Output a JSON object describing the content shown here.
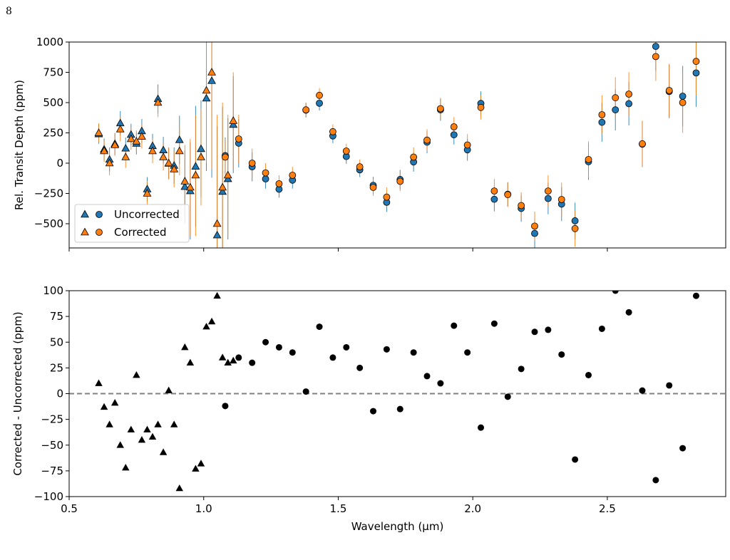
{
  "page_number": "8",
  "chart_data": [
    {
      "type": "errorbar",
      "ylabel": "Rel. Transit Depth (ppm)",
      "xlim": [
        0.5,
        2.94
      ],
      "ylim": [
        -700,
        1000
      ],
      "xticks": [
        {
          "value": 0.5,
          "label": "0.5"
        },
        {
          "value": 1.0,
          "label": "1.0"
        },
        {
          "value": 1.5,
          "label": "1.5"
        },
        {
          "value": 2.0,
          "label": "2.0"
        },
        {
          "value": 2.5,
          "label": "2.5"
        }
      ],
      "yticks": [
        {
          "value": -500,
          "label": "−500"
        },
        {
          "value": -250,
          "label": "−250"
        },
        0,
        250,
        500,
        750,
        1000
      ],
      "legend": "lower left",
      "series": [
        {
          "name": "Uncorrected",
          "color": "#1f77b4",
          "groups": [
            {
              "marker": "triangle",
              "x": [
                0.61,
                0.63,
                0.65,
                0.67,
                0.69,
                0.71,
                0.73,
                0.75,
                0.77,
                0.79,
                0.81,
                0.83,
                0.85,
                0.87,
                0.89,
                0.91,
                0.93,
                0.95,
                0.97,
                0.99,
                1.01,
                1.03,
                1.05,
                1.07,
                1.09,
                1.11
              ],
              "values": [
                240,
                113,
                30,
                159,
                330,
                122,
                235,
                162,
                265,
                -215,
                142,
                530,
                107,
                -3,
                -20,
                192,
                -195,
                -230,
                -27,
                118,
                535,
                680,
                -595,
                -235,
                -130,
                318
              ],
              "errors": [
                80,
                90,
                100,
                90,
                100,
                90,
                90,
                90,
                100,
                100,
                100,
                120,
                110,
                130,
                150,
                200,
                300,
                400,
                500,
                400,
                600,
                800,
                900,
                700,
                500,
                400
              ]
            },
            {
              "marker": "circle",
              "x": [
                1.08,
                1.13,
                1.18,
                1.23,
                1.28,
                1.33,
                1.38,
                1.43,
                1.48,
                1.53,
                1.58,
                1.63,
                1.68,
                1.73,
                1.78,
                1.83,
                1.88,
                1.93,
                1.98,
                2.03,
                2.08,
                2.13,
                2.18,
                2.23,
                2.28,
                2.33,
                2.38,
                2.43,
                2.48,
                2.53,
                2.58,
                2.63,
                2.68,
                2.73,
                2.78,
                2.83
              ],
              "values": [
                62,
                165,
                -30,
                -130,
                -215,
                -140,
                438,
                495,
                225,
                55,
                -55,
                -183,
                -323,
                -135,
                10,
                173,
                440,
                234,
                110,
                493,
                -298,
                -257,
                -374,
                -580,
                -292,
                -338,
                -476,
                12,
                337,
                440,
                491,
                157,
                964,
                592,
                553,
                745
              ],
              "errors": [
                150,
                200,
                120,
                80,
                70,
                70,
                60,
                60,
                60,
                60,
                60,
                70,
                80,
                80,
                80,
                90,
                90,
                80,
                90,
                100,
                100,
                100,
                110,
                120,
                130,
                140,
                150,
                150,
                160,
                170,
                180,
                190,
                200,
                220,
                250,
                280
              ]
            }
          ]
        },
        {
          "name": "Corrected",
          "color": "#ff7f0e",
          "groups": [
            {
              "marker": "triangle",
              "x": [
                0.61,
                0.63,
                0.65,
                0.67,
                0.69,
                0.71,
                0.73,
                0.75,
                0.77,
                0.79,
                0.81,
                0.83,
                0.85,
                0.87,
                0.89,
                0.91,
                0.93,
                0.95,
                0.97,
                0.99,
                1.01,
                1.03,
                1.05,
                1.07,
                1.09,
                1.11
              ],
              "values": [
                250,
                100,
                0,
                150,
                280,
                50,
                200,
                180,
                220,
                -250,
                100,
                500,
                50,
                0,
                -50,
                100,
                -150,
                -200,
                -100,
                50,
                600,
                750,
                -500,
                -200,
                -100,
                350
              ],
              "errors": [
                80,
                90,
                100,
                90,
                100,
                90,
                90,
                90,
                100,
                100,
                100,
                120,
                110,
                130,
                150,
                200,
                300,
                400,
                500,
                400,
                600,
                800,
                900,
                700,
                500,
                400
              ]
            },
            {
              "marker": "circle",
              "x": [
                1.08,
                1.13,
                1.18,
                1.23,
                1.28,
                1.33,
                1.38,
                1.43,
                1.48,
                1.53,
                1.58,
                1.63,
                1.68,
                1.73,
                1.78,
                1.83,
                1.88,
                1.93,
                1.98,
                2.03,
                2.08,
                2.13,
                2.18,
                2.23,
                2.28,
                2.33,
                2.38,
                2.43,
                2.48,
                2.53,
                2.58,
                2.63,
                2.68,
                2.73,
                2.78,
                2.83
              ],
              "values": [
                50,
                200,
                0,
                -80,
                -170,
                -100,
                440,
                560,
                260,
                100,
                -30,
                -200,
                -280,
                -150,
                50,
                190,
                450,
                300,
                150,
                460,
                -230,
                -260,
                -350,
                -520,
                -230,
                -300,
                -540,
                30,
                400,
                540,
                570,
                160,
                880,
                600,
                500,
                840
              ],
              "errors": [
                150,
                200,
                120,
                80,
                70,
                70,
                60,
                60,
                60,
                60,
                60,
                70,
                80,
                80,
                80,
                90,
                90,
                80,
                90,
                100,
                100,
                100,
                110,
                120,
                130,
                140,
                150,
                150,
                160,
                170,
                180,
                190,
                200,
                220,
                250,
                280
              ]
            }
          ]
        }
      ]
    },
    {
      "type": "scatter",
      "ylabel": "Corrected - Uncorrected (ppm)",
      "xlabel": "Wavelength (μm)",
      "xlim": [
        0.5,
        2.94
      ],
      "ylim": [
        -100,
        100
      ],
      "xticks": [
        {
          "value": 0.5,
          "label": "0.5"
        },
        {
          "value": 1.0,
          "label": "1.0"
        },
        {
          "value": 1.5,
          "label": "1.5"
        },
        {
          "value": 2.0,
          "label": "2.0"
        },
        {
          "value": 2.5,
          "label": "2.5"
        }
      ],
      "yticks": [
        {
          "value": -100,
          "label": "−100"
        },
        {
          "value": -75,
          "label": "−75"
        },
        {
          "value": -50,
          "label": "−50"
        },
        {
          "value": -25,
          "label": "−25"
        },
        0,
        25,
        50,
        75,
        100
      ],
      "hline": 0,
      "hline_color": "#808080",
      "series": [
        {
          "color": "#000000",
          "groups": [
            {
              "marker": "triangle",
              "x": [
                0.61,
                0.63,
                0.65,
                0.67,
                0.69,
                0.71,
                0.73,
                0.75,
                0.77,
                0.79,
                0.81,
                0.83,
                0.85,
                0.87,
                0.89,
                0.91,
                0.93,
                0.95,
                0.97,
                0.99,
                1.01,
                1.03,
                1.05,
                1.07,
                1.09,
                1.11
              ],
              "values": [
                10,
                -13,
                -30,
                -9,
                -50,
                -72,
                -35,
                18,
                -45,
                -35,
                -42,
                -30,
                -57,
                3,
                -30,
                -92,
                45,
                30,
                -73,
                -68,
                65,
                70,
                95,
                35,
                30,
                32
              ]
            },
            {
              "marker": "circle",
              "x": [
                1.08,
                1.13,
                1.18,
                1.23,
                1.28,
                1.33,
                1.38,
                1.43,
                1.48,
                1.53,
                1.58,
                1.63,
                1.68,
                1.73,
                1.78,
                1.83,
                1.88,
                1.93,
                1.98,
                2.03,
                2.08,
                2.13,
                2.18,
                2.23,
                2.28,
                2.33,
                2.38,
                2.43,
                2.48,
                2.53,
                2.58,
                2.63,
                2.68,
                2.73,
                2.78,
                2.83
              ],
              "values": [
                -12,
                35,
                30,
                50,
                45,
                40,
                2,
                65,
                35,
                45,
                25,
                -17,
                43,
                -15,
                40,
                17,
                10,
                66,
                40,
                -33,
                68,
                -3,
                24,
                60,
                62,
                38,
                -64,
                18,
                63,
                100,
                79,
                3,
                -84,
                8,
                -53,
                95
              ]
            }
          ]
        }
      ]
    }
  ]
}
